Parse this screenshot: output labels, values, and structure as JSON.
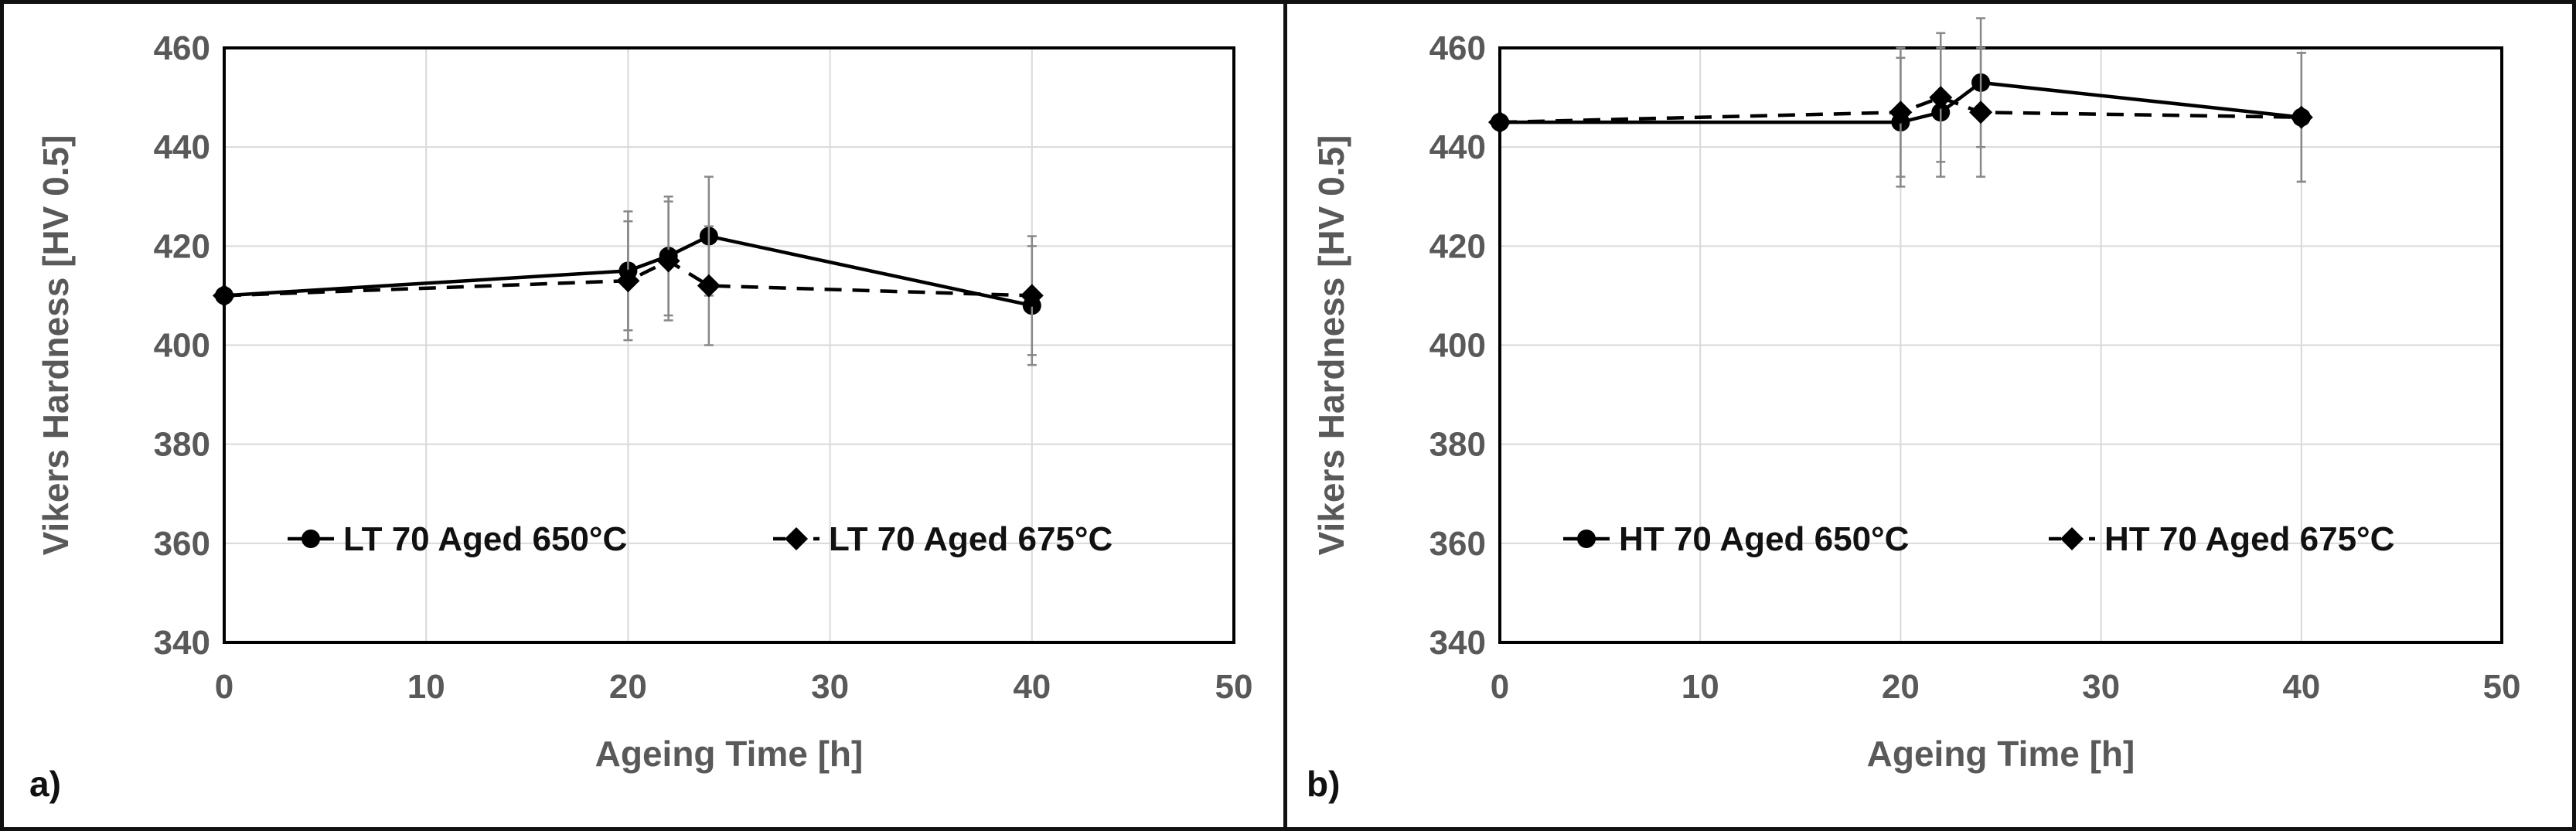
{
  "chart_data": [
    {
      "type": "line",
      "panel_label": "a)",
      "xlabel": "Ageing Time [h]",
      "ylabel": "Vikers Hardness [HV 0.5]",
      "xlim": [
        0,
        50
      ],
      "ylim": [
        340,
        460
      ],
      "xticks": [
        0,
        10,
        20,
        30,
        40,
        50
      ],
      "yticks": [
        340,
        360,
        380,
        400,
        420,
        440,
        460
      ],
      "grid": true,
      "legend_position": "lower-center",
      "series": [
        {
          "name": "LT 70 Aged 650°C",
          "marker": "circle",
          "line": "solid",
          "x": [
            0,
            20,
            22,
            24,
            40
          ],
          "y": [
            410,
            415,
            418,
            422,
            408
          ],
          "yerr": [
            0,
            12,
            12,
            12,
            12
          ]
        },
        {
          "name": "LT 70 Aged 675°C",
          "marker": "diamond",
          "line": "dashed",
          "x": [
            0,
            20,
            22,
            24,
            40
          ],
          "y": [
            410,
            413,
            417,
            412,
            410
          ],
          "yerr": [
            0,
            12,
            12,
            12,
            12
          ]
        }
      ]
    },
    {
      "type": "line",
      "panel_label": "b)",
      "xlabel": "Ageing Time [h]",
      "ylabel": "Vikers Hardness [HV 0.5]",
      "xlim": [
        0,
        50
      ],
      "ylim": [
        340,
        460
      ],
      "xticks": [
        0,
        10,
        20,
        30,
        40,
        50
      ],
      "yticks": [
        340,
        360,
        380,
        400,
        420,
        440,
        460
      ],
      "grid": true,
      "legend_position": "lower-center",
      "series": [
        {
          "name": "HT 70 Aged 650°C",
          "marker": "circle",
          "line": "solid",
          "x": [
            0,
            20,
            22,
            24,
            40
          ],
          "y": [
            445,
            445,
            447,
            453,
            446
          ],
          "yerr": [
            0,
            13,
            13,
            13,
            13
          ]
        },
        {
          "name": "HT 70 Aged 675°C",
          "marker": "diamond",
          "line": "dashed",
          "x": [
            0,
            20,
            22,
            24,
            40
          ],
          "y": [
            445,
            447,
            450,
            447,
            446
          ],
          "yerr": [
            0,
            13,
            13,
            13,
            13
          ]
        }
      ]
    }
  ]
}
